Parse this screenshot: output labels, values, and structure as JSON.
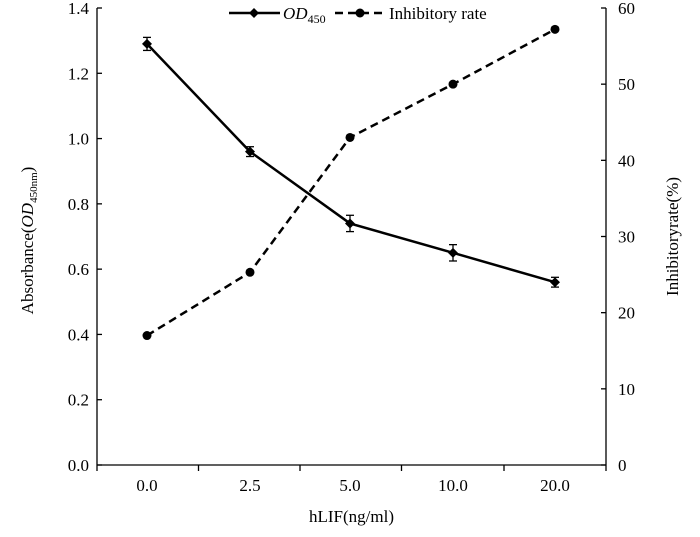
{
  "chart_data": {
    "type": "line",
    "title": "",
    "xlabel": "hLIF(ng/ml)",
    "ylabel": {
      "prefix": "Absorbance(",
      "italic": "OD",
      "sub": "450nm",
      "suffix": ")"
    },
    "y2label": "Inhibitoryrate(%)",
    "categories": [
      "0.0",
      "2.5",
      "5.0",
      "10.0",
      "20.0"
    ],
    "ylim": [
      0,
      1.4
    ],
    "yticks": [
      "0.0",
      "0.2",
      "0.4",
      "0.6",
      "0.8",
      "1.0",
      "1.2",
      "1.4"
    ],
    "y2lim": [
      0,
      60
    ],
    "y2ticks": [
      "0",
      "10",
      "20",
      "30",
      "40",
      "50",
      "60"
    ],
    "series": [
      {
        "name": "OD450",
        "legend": {
          "italic": "OD",
          "sub": "450"
        },
        "axis": "left",
        "style": "solid",
        "marker": "diamond",
        "values": [
          1.29,
          0.96,
          0.74,
          0.65,
          0.56
        ],
        "errors": [
          0.02,
          0.015,
          0.025,
          0.025,
          0.015
        ]
      },
      {
        "name": "Inhibitory rate",
        "legend": {
          "text": "Inhibitory rate"
        },
        "axis": "right",
        "style": "dashed",
        "marker": "circle",
        "values": [
          17,
          25.3,
          43,
          50,
          57.2
        ]
      }
    ],
    "legend_position": "top-center",
    "grid": false,
    "colors": {
      "line": "#000000",
      "background": "#ffffff"
    }
  }
}
